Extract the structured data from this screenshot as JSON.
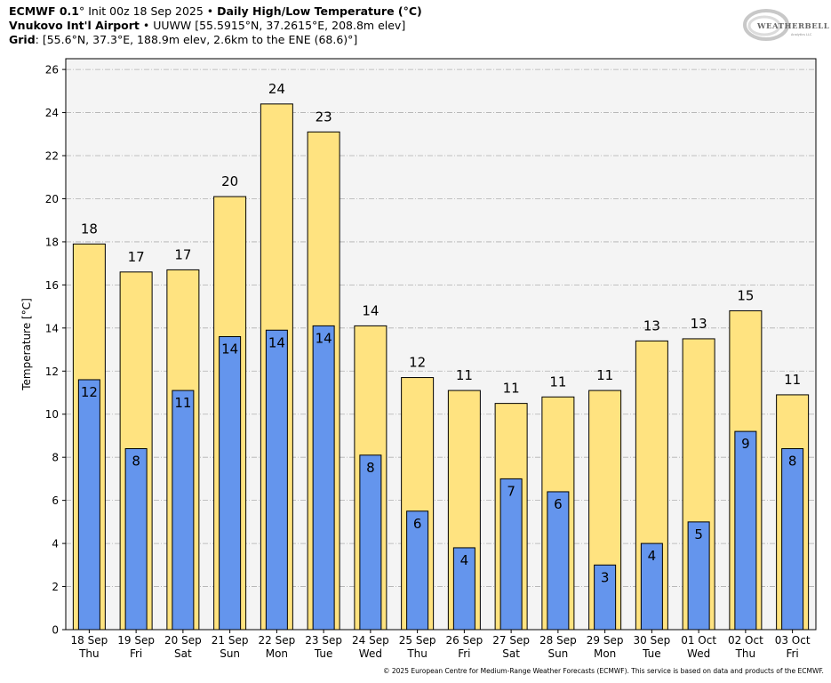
{
  "header": {
    "line1_bold_model": "ECMWF 0.1",
    "line1_model_suffix": "°",
    "line1_init": " Init 00z 18 Sep 2025 • ",
    "line1_bold_title": "Daily High/Low Temperature (°C)",
    "line2_bold_station": "Vnukovo Int'l Airport",
    "line2_rest": " • UUWW [55.5915°N, 37.2615°E, 208.8m elev]",
    "line3_bold_grid": "Grid",
    "line3_rest": ": [55.6°N, 37.3°E, 188.9m elev, 2.6km to the ENE (68.6)°]"
  },
  "logo": {
    "text": "WEATHERBELL",
    "sub": "Analytics LLC"
  },
  "copyright": "© 2025 European Centre for Medium-Range Weather Forecasts (ECMWF). This service is based on data and products of the ECMWF.",
  "colors": {
    "high_bar": "#ffe380",
    "low_bar": "#6495ed",
    "plot_bg": "#f4f4f4",
    "grid": "#b0b0b0"
  },
  "chart_data": {
    "type": "bar",
    "title": "Daily High/Low Temperature (°C)",
    "ylabel": "Temperature [°C]",
    "xlabel": "",
    "ylim": [
      0,
      26.5
    ],
    "yticks": [
      0,
      2,
      4,
      6,
      8,
      10,
      12,
      14,
      16,
      18,
      20,
      22,
      24,
      26
    ],
    "grid": true,
    "categories": [
      {
        "date": "18 Sep",
        "day": "Thu"
      },
      {
        "date": "19 Sep",
        "day": "Fri"
      },
      {
        "date": "20 Sep",
        "day": "Sat"
      },
      {
        "date": "21 Sep",
        "day": "Sun"
      },
      {
        "date": "22 Sep",
        "day": "Mon"
      },
      {
        "date": "23 Sep",
        "day": "Tue"
      },
      {
        "date": "24 Sep",
        "day": "Wed"
      },
      {
        "date": "25 Sep",
        "day": "Thu"
      },
      {
        "date": "26 Sep",
        "day": "Fri"
      },
      {
        "date": "27 Sep",
        "day": "Sat"
      },
      {
        "date": "28 Sep",
        "day": "Sun"
      },
      {
        "date": "29 Sep",
        "day": "Mon"
      },
      {
        "date": "30 Sep",
        "day": "Tue"
      },
      {
        "date": "01 Oct",
        "day": "Wed"
      },
      {
        "date": "02 Oct",
        "day": "Thu"
      },
      {
        "date": "03 Oct",
        "day": "Fri"
      }
    ],
    "series": [
      {
        "role": "high",
        "values": [
          17.9,
          16.6,
          16.7,
          20.1,
          24.4,
          23.1,
          14.1,
          11.7,
          11.1,
          10.5,
          10.8,
          11.1,
          13.4,
          13.5,
          14.8,
          10.9
        ],
        "labels": [
          "18",
          "17",
          "17",
          "20",
          "24",
          "23",
          "14",
          "12",
          "11",
          "11",
          "11",
          "11",
          "13",
          "13",
          "15",
          "11"
        ]
      },
      {
        "role": "low",
        "values": [
          11.6,
          8.4,
          11.1,
          13.6,
          13.9,
          14.1,
          8.1,
          5.5,
          3.8,
          7.0,
          6.4,
          3.0,
          4.0,
          5.0,
          9.2,
          8.4
        ],
        "labels": [
          "12",
          "8",
          "11",
          "14",
          "14",
          "14",
          "8",
          "6",
          "4",
          "7",
          "6",
          "3",
          "4",
          "5",
          "9",
          "8"
        ]
      }
    ]
  }
}
